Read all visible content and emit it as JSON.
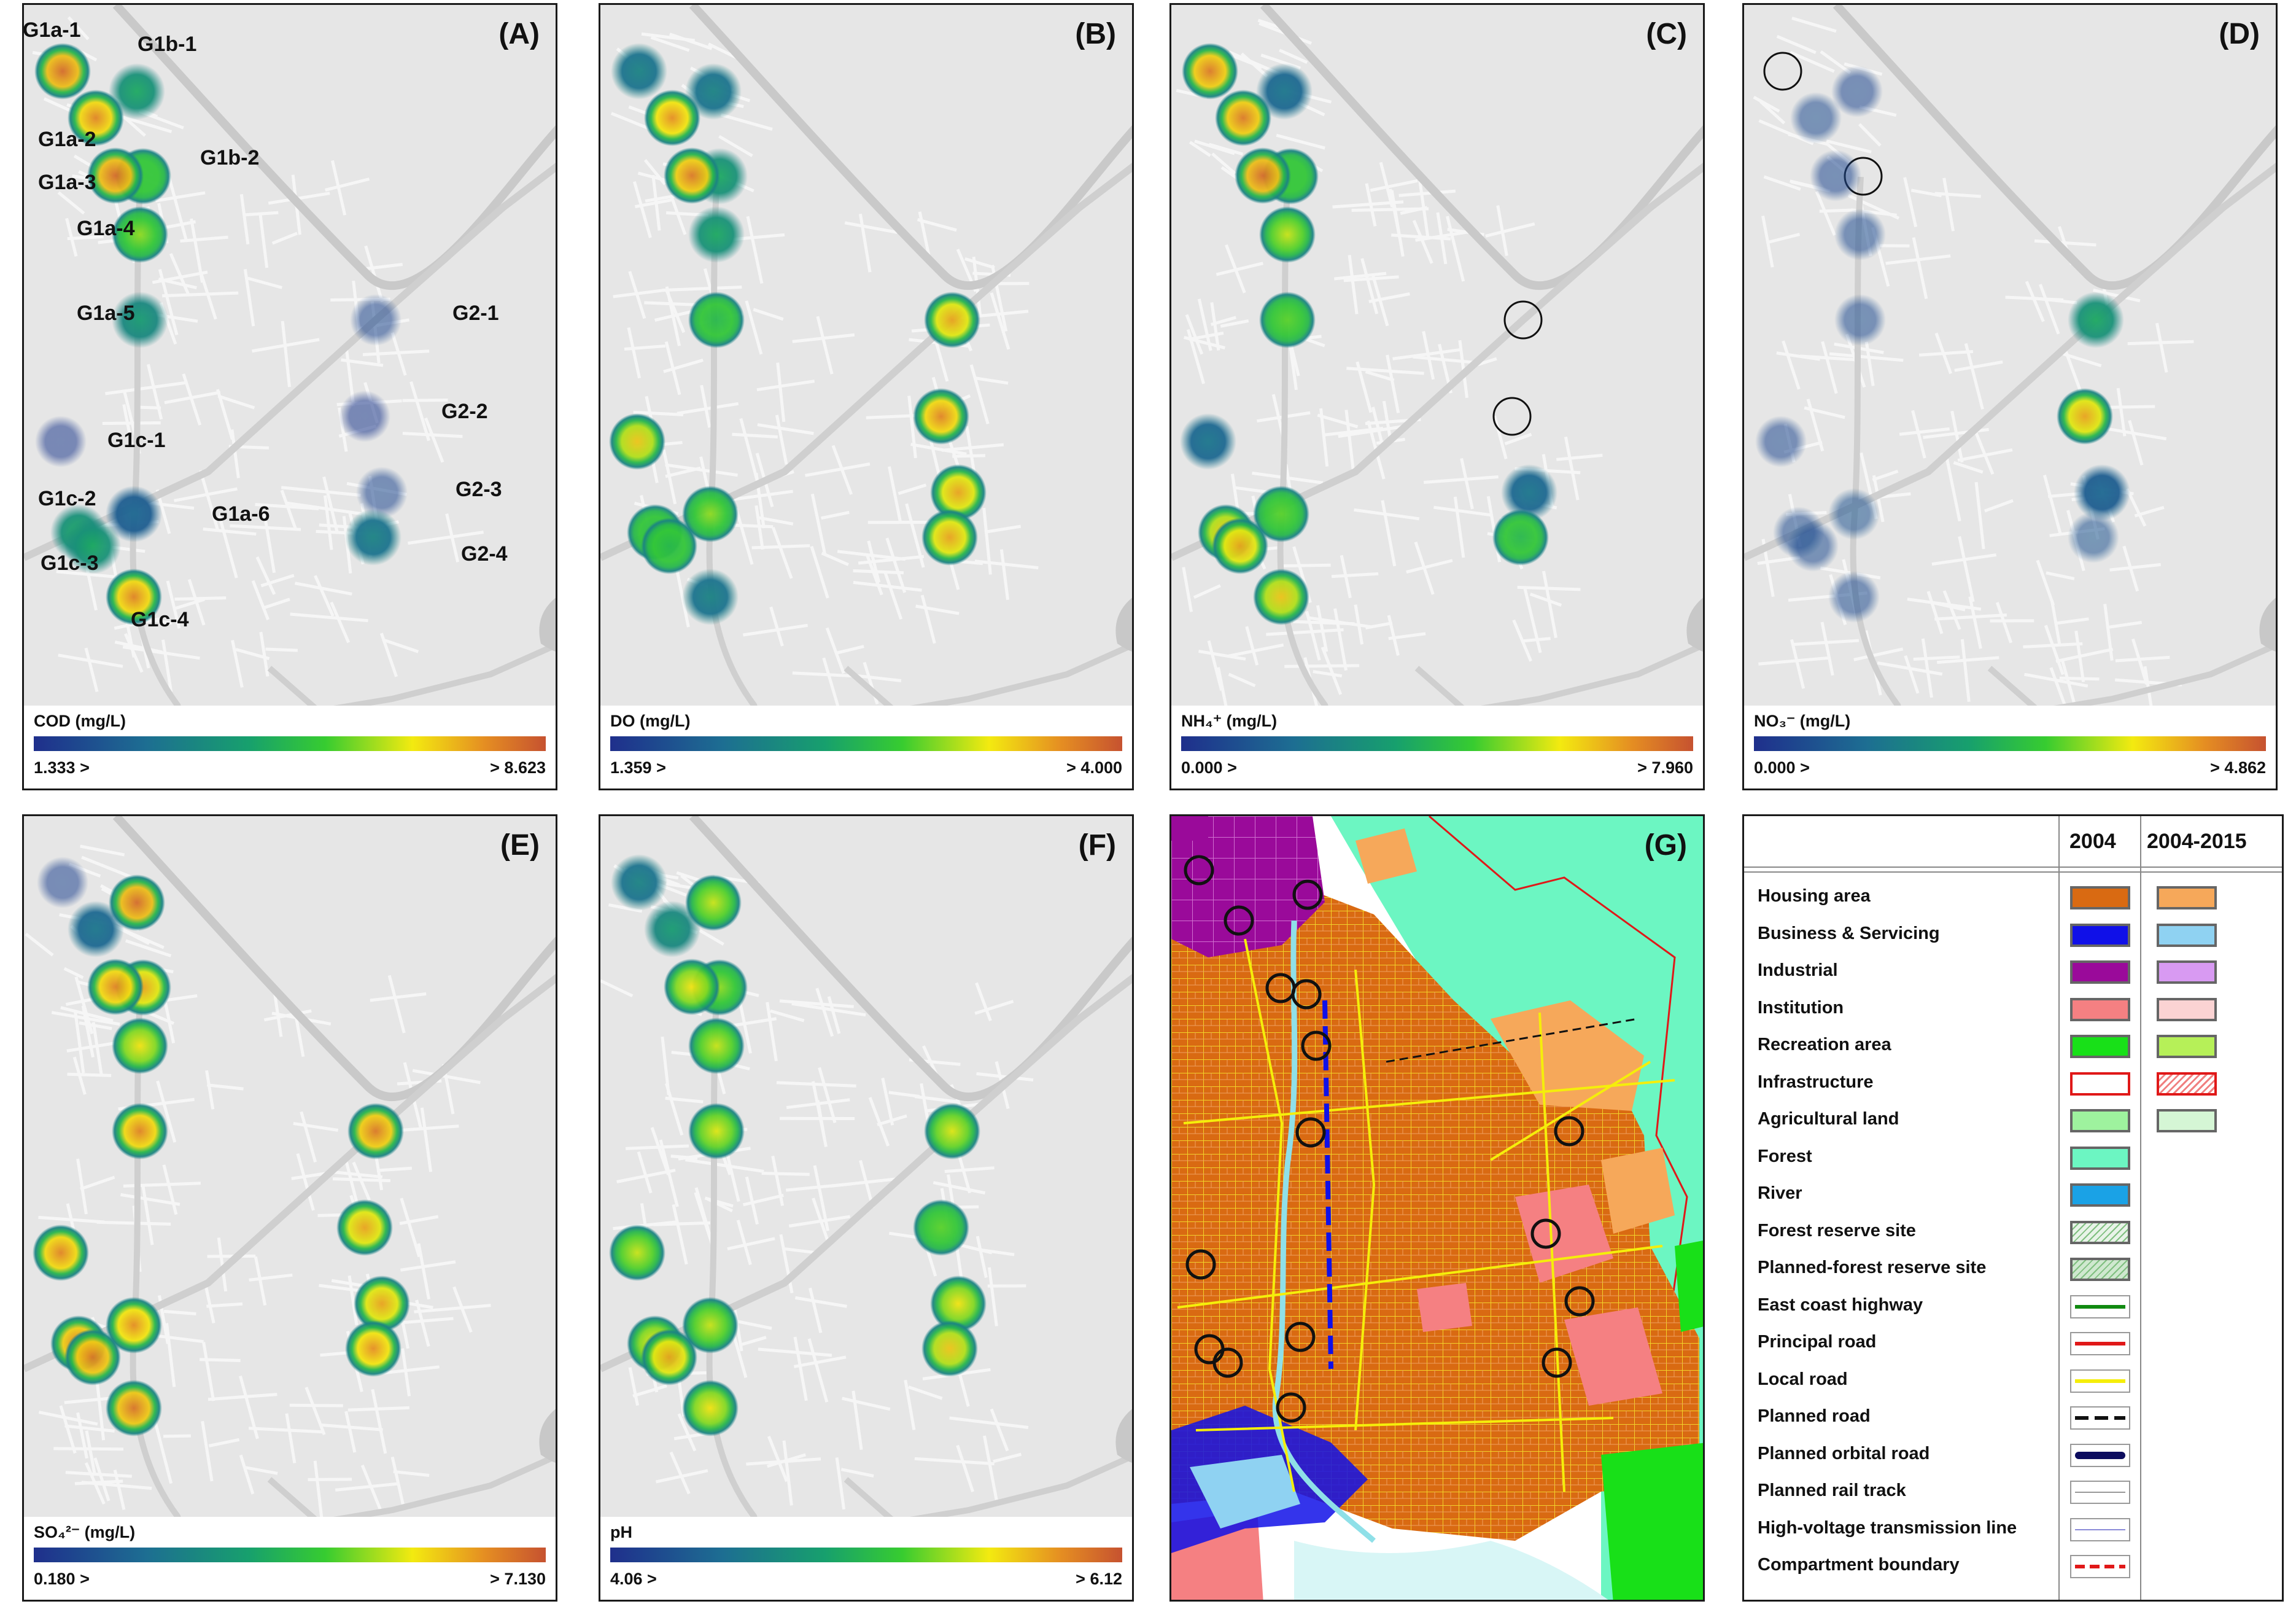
{
  "colorbar": {
    "low": "#1f2f8c",
    "mid": "#37cc30",
    "high": "#c65230"
  },
  "panels": {
    "A": {
      "letter": "(A)",
      "title": "COD (mg/L)",
      "min": "1.333 >",
      "max": "> 8.623",
      "min_value": 1.333,
      "max_value": 8.623
    },
    "B": {
      "letter": "(B)",
      "title": "DO (mg/L)",
      "min": "1.359 >",
      "max": "> 4.000",
      "min_value": 1.359,
      "max_value": 4.0
    },
    "C": {
      "letter": "(C)",
      "title": "NH₄⁺ (mg/L)",
      "min": "0.000 >",
      "max": "> 7.960",
      "min_value": 0.0,
      "max_value": 7.96
    },
    "D": {
      "letter": "(D)",
      "title": "NO₃⁻ (mg/L)",
      "min": "0.000 >",
      "max": "> 4.862",
      "min_value": 0.0,
      "max_value": 4.862
    },
    "E": {
      "letter": "(E)",
      "title": "SO₄²⁻ (mg/L)",
      "min": "0.180 >",
      "max": "> 7.130",
      "min_value": 0.18,
      "max_value": 7.13
    },
    "F": {
      "letter": "(F)",
      "title": "pH",
      "min": "4.06 >",
      "max": "> 6.12",
      "min_value": 4.06,
      "max_value": 6.12
    },
    "G": {
      "letter": "(G)"
    }
  },
  "sites": [
    "G1a-1",
    "G1b-1",
    "G1a-2",
    "G1b-2",
    "G1a-3",
    "G1a-4",
    "G1a-5",
    "G2-1",
    "G2-2",
    "G1c-1",
    "G2-3",
    "G1c-2",
    "G1a-6",
    "G1c-3",
    "G2-4",
    "G1c-4"
  ],
  "site_levels": {
    "A": [
      0.95,
      0.45,
      0.9,
      0.55,
      0.95,
      0.65,
      0.4,
      0.1,
      0.05,
      0.05,
      0.1,
      0.45,
      0.2,
      0.45,
      0.3,
      0.9
    ],
    "B": [
      0.3,
      0.3,
      0.88,
      0.45,
      0.92,
      0.45,
      0.5,
      0.85,
      0.9,
      0.8,
      0.85,
      0.5,
      0.65,
      0.5,
      0.85,
      0.3
    ],
    "C": [
      0.92,
      0.25,
      0.92,
      0.55,
      0.95,
      0.7,
      0.6,
      null,
      null,
      0.25,
      0.25,
      0.8,
      0.6,
      0.85,
      0.5,
      0.8
    ],
    "D": [
      null,
      0.1,
      0.12,
      null,
      0.1,
      0.12,
      0.12,
      0.45,
      0.85,
      0.1,
      0.2,
      0.12,
      0.15,
      0.12,
      0.15,
      0.12
    ],
    "E": [
      0.08,
      0.95,
      0.25,
      0.85,
      0.9,
      0.75,
      0.9,
      0.92,
      0.85,
      0.9,
      0.85,
      0.92,
      0.88,
      0.93,
      0.88,
      0.93
    ],
    "F": [
      0.3,
      0.7,
      0.4,
      0.65,
      0.75,
      0.7,
      0.72,
      0.72,
      0.6,
      0.7,
      0.75,
      0.75,
      0.7,
      0.85,
      0.8,
      0.75
    ]
  },
  "legend": {
    "header_2004": "2004",
    "header_2004_2015": "2004-2015",
    "items": [
      {
        "label": "Housing area",
        "swatch_2004": "#d96a12",
        "swatch_2015": "#f6a85a",
        "edge": "#666666"
      },
      {
        "label": "Business & Servicing",
        "swatch_2004": "#1010e8",
        "swatch_2015": "#8fd2f2",
        "edge": "#666666"
      },
      {
        "label": "Industrial",
        "swatch_2004": "#9a0a9a",
        "swatch_2015": "#d89af2",
        "edge": "#666666"
      },
      {
        "label": "Institution",
        "swatch_2004": "#f58082",
        "swatch_2015": "#fbd3d3",
        "edge": "#666666"
      },
      {
        "label": "Recreation area",
        "swatch_2004": "#18e018",
        "swatch_2015": "#b6f058",
        "edge": "#666666"
      },
      {
        "label": "Infrastructure",
        "swatch_2004": "#ffffff",
        "swatch_2015": "#f3b0b0",
        "edge": "#e01818"
      },
      {
        "label": "Agricultural land",
        "swatch_2004": "#9ef29e",
        "swatch_2015": "#d5f6d5",
        "edge": "#666666"
      },
      {
        "label": "Forest",
        "swatch_2004": "#6cf6c2",
        "edge": "#666666"
      },
      {
        "label": "River",
        "swatch_2004": "#1aa2e6",
        "edge": "#666666"
      },
      {
        "label": "Forest reserve site",
        "swatch_2004": "#e8f3e8",
        "edge": "#666666"
      },
      {
        "label": "Planned-forest reserve site",
        "swatch_2004": "#cfe8cf",
        "edge": "#666666"
      },
      {
        "label": "East coast highway",
        "line_color": "#118a11",
        "line_style": "solid"
      },
      {
        "label": "Principal road",
        "line_color": "#e01818",
        "line_style": "solid"
      },
      {
        "label": "Local road",
        "line_color": "#f5ee0a",
        "line_style": "solid"
      },
      {
        "label": "Planned road",
        "line_color": "#111111",
        "line_style": "dashed"
      },
      {
        "label": "Planned orbital road",
        "line_color": "#0c0c5e",
        "line_style": "thick"
      },
      {
        "label": "Planned rail track",
        "line_color": "#999999",
        "line_style": "rail"
      },
      {
        "label": "High-voltage transmission line",
        "line_color": "#8a8ad8",
        "line_style": "hv"
      },
      {
        "label": "Compartment boundary",
        "line_color": "#e01818",
        "line_style": "dashdot"
      }
    ]
  }
}
